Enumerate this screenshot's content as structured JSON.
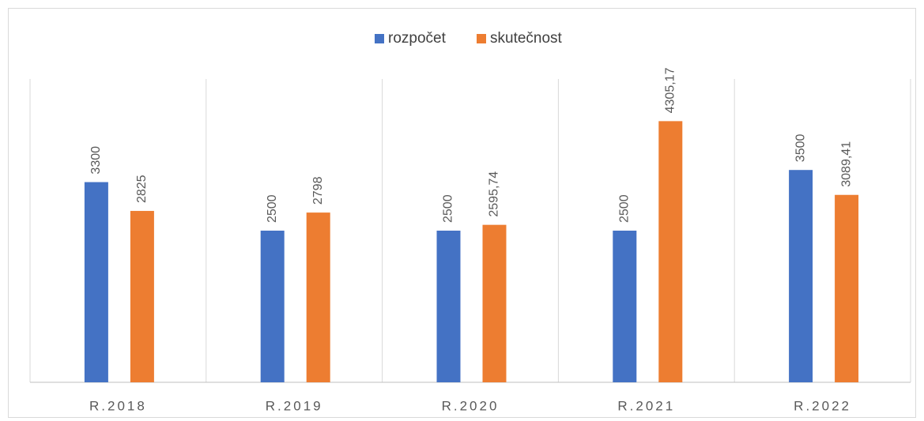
{
  "chart_data": {
    "type": "bar",
    "categories": [
      "R.2018",
      "R.2019",
      "R.2020",
      "R.2021",
      "R.2022"
    ],
    "series": [
      {
        "name": "rozpočet",
        "color": "#4472c4",
        "values": [
          3300,
          2500,
          2500,
          2500,
          3500
        ],
        "value_labels": [
          "3300",
          "2500",
          "2500",
          "2500",
          "3500"
        ]
      },
      {
        "name": "skutečnost",
        "color": "#ed7d31",
        "values": [
          2825,
          2798,
          2595.74,
          4305.17,
          3089.41
        ],
        "value_labels": [
          "2825",
          "2798",
          "2595,74",
          "4305,17",
          "3089,41"
        ]
      }
    ],
    "ylim": [
      0,
      5000
    ],
    "legend": "top"
  }
}
